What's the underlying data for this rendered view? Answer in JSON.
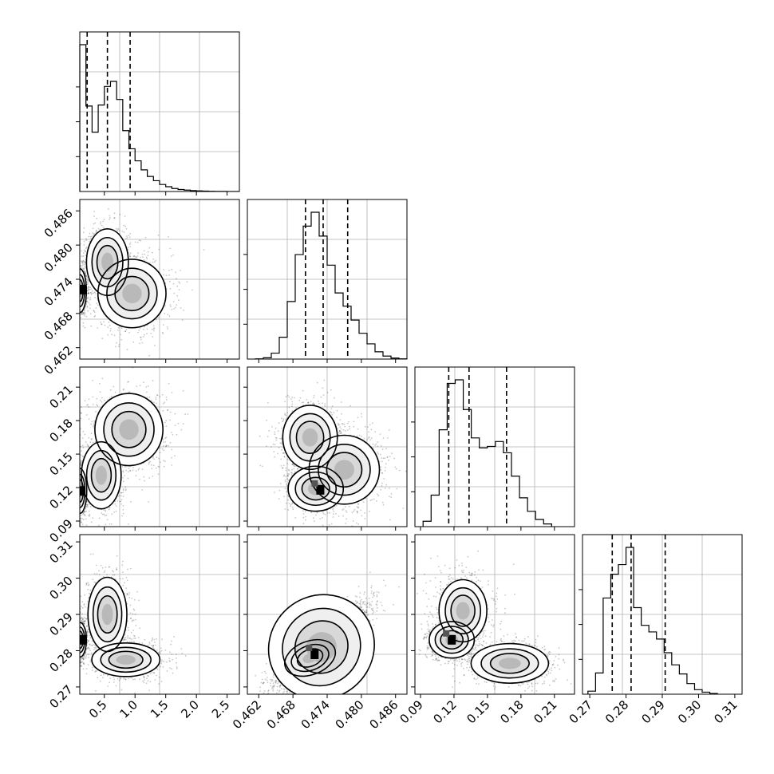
{
  "chart_data": {
    "type": "corner",
    "parameters": [
      {
        "range": [
          0.1,
          2.7
        ],
        "ticks": [
          0.5,
          1.0,
          1.5,
          2.0,
          2.5
        ],
        "tick_labels": [
          "0.5",
          "1.0",
          "1.5",
          "2.0",
          "2.5"
        ],
        "quantiles": [
          0.22,
          0.55,
          0.92
        ],
        "histogram": {
          "edges": [
            0.1,
            0.2,
            0.3,
            0.4,
            0.5,
            0.6,
            0.7,
            0.8,
            0.9,
            1.0,
            1.1,
            1.2,
            1.3,
            1.4,
            1.5,
            1.6,
            1.7,
            1.8,
            1.9,
            2.0,
            2.1,
            2.2,
            2.3,
            2.4,
            2.5,
            2.6,
            2.7
          ],
          "counts": [
            2920,
            1700,
            1180,
            1720,
            2090,
            2190,
            1830,
            1210,
            850,
            610,
            430,
            300,
            215,
            140,
            95,
            60,
            40,
            28,
            18,
            12,
            8,
            5,
            3,
            2,
            1,
            1
          ]
        }
      },
      {
        "range": [
          0.46,
          0.488
        ],
        "ticks": [
          0.462,
          0.468,
          0.474,
          0.48,
          0.486
        ],
        "tick_labels": [
          "0.462",
          "0.468",
          "0.474",
          "0.480",
          "0.486"
        ],
        "quantiles": [
          0.4702,
          0.4733,
          0.4776
        ],
        "histogram": {
          "edges": [
            0.4614,
            0.4628,
            0.4642,
            0.4656,
            0.467,
            0.4684,
            0.4698,
            0.4712,
            0.4726,
            0.474,
            0.4754,
            0.4768,
            0.4782,
            0.4796,
            0.481,
            0.4824,
            0.4838,
            0.4852,
            0.4866,
            0.488
          ],
          "counts": [
            3,
            20,
            90,
            330,
            870,
            1580,
            2010,
            2220,
            1860,
            1420,
            1000,
            800,
            590,
            390,
            230,
            110,
            45,
            15,
            4
          ]
        }
      },
      {
        "range": [
          0.085,
          0.228
        ],
        "ticks": [
          0.09,
          0.12,
          0.15,
          0.18,
          0.21
        ],
        "tick_labels": [
          "0.09",
          "0.12",
          "0.15",
          "0.18",
          "0.21"
        ],
        "quantiles": [
          0.1153,
          0.1335,
          0.1671
        ],
        "histogram": {
          "edges": [
            0.0923,
            0.0995,
            0.1067,
            0.1139,
            0.1211,
            0.1283,
            0.1355,
            0.1427,
            0.1499,
            0.1571,
            0.1643,
            0.1715,
            0.1787,
            0.1859,
            0.1931,
            0.2003,
            0.2075
          ],
          "counts": [
            120,
            700,
            2150,
            3180,
            3260,
            2600,
            1970,
            1750,
            1780,
            1890,
            1640,
            1120,
            640,
            340,
            160,
            60
          ]
        }
      },
      {
        "range": [
          0.268,
          0.312
        ],
        "ticks": [
          0.27,
          0.28,
          0.29,
          0.3,
          0.31
        ],
        "tick_labels": [
          "0.27",
          "0.28",
          "0.29",
          "0.30",
          "0.31"
        ],
        "quantiles": [
          0.2762,
          0.2814,
          0.2908
        ],
        "histogram": {
          "edges": [
            0.2695,
            0.2716,
            0.2737,
            0.2758,
            0.2779,
            0.28,
            0.2821,
            0.2842,
            0.2863,
            0.2884,
            0.2905,
            0.2926,
            0.2947,
            0.2968,
            0.2989,
            0.301,
            0.3031,
            0.3052
          ],
          "counts": [
            60,
            420,
            1900,
            2370,
            2560,
            2900,
            1710,
            1360,
            1230,
            1090,
            820,
            580,
            400,
            210,
            90,
            40,
            15
          ]
        }
      }
    ],
    "contour_panels": [
      {
        "x": 0,
        "y": 1,
        "samples": [
          {
            "x": 0.1,
            "y": 0.472,
            "sx": 0.045,
            "sy": 0.0016,
            "w": 0.34,
            "n": 1000
          },
          {
            "x": 0.55,
            "y": 0.477,
            "sx": 0.14,
            "sy": 0.0024,
            "w": 0.36,
            "n": 1000
          },
          {
            "x": 0.95,
            "y": 0.4715,
            "sx": 0.24,
            "sy": 0.0026,
            "w": 0.3,
            "n": 900
          }
        ],
        "peak": {
          "x": 0.14,
          "y": 0.4722
        }
      },
      {
        "x": 0,
        "y": 2,
        "samples": [
          {
            "x": 0.1,
            "y": 0.117,
            "sx": 0.045,
            "sy": 0.008,
            "w": 0.4,
            "n": 1000
          },
          {
            "x": 0.45,
            "y": 0.131,
            "sx": 0.14,
            "sy": 0.013,
            "w": 0.3,
            "n": 900
          },
          {
            "x": 0.9,
            "y": 0.172,
            "sx": 0.24,
            "sy": 0.014,
            "w": 0.3,
            "n": 900
          }
        ],
        "peak": {
          "x": 0.12,
          "y": 0.117
        }
      },
      {
        "x": 1,
        "y": 2,
        "samples": [
          {
            "x": 0.472,
            "y": 0.119,
            "sx": 0.0018,
            "sy": 0.0075,
            "w": 0.48,
            "n": 1100
          },
          {
            "x": 0.471,
            "y": 0.165,
            "sx": 0.002,
            "sy": 0.012,
            "w": 0.34,
            "n": 900
          },
          {
            "x": 0.477,
            "y": 0.136,
            "sx": 0.003,
            "sy": 0.015,
            "w": 0.18,
            "n": 700
          }
        ],
        "peak": {
          "x": 0.4728,
          "y": 0.118
        }
      },
      {
        "x": 0,
        "y": 3,
        "samples": [
          {
            "x": 0.1,
            "y": 0.283,
            "sx": 0.045,
            "sy": 0.002,
            "w": 0.34,
            "n": 900
          },
          {
            "x": 0.55,
            "y": 0.29,
            "sx": 0.13,
            "sy": 0.0042,
            "w": 0.36,
            "n": 1000
          },
          {
            "x": 0.85,
            "y": 0.2775,
            "sx": 0.24,
            "sy": 0.002,
            "w": 0.3,
            "n": 900
          }
        ],
        "peak": {
          "x": 0.14,
          "y": 0.283
        }
      },
      {
        "x": 1,
        "y": 3,
        "samples": [
          {
            "x": 0.473,
            "y": 0.281,
            "sx": 0.003,
            "sy": 0.0045,
            "rho": 0.86,
            "w": 0.7,
            "n": 2400
          },
          {
            "x": 0.471,
            "y": 0.278,
            "sx": 0.002,
            "sy": 0.002,
            "rho": 0.6,
            "w": 0.3,
            "n": 600
          }
        ],
        "peak": {
          "x": 0.4718,
          "y": 0.279
        }
      },
      {
        "x": 2,
        "y": 3,
        "samples": [
          {
            "x": 0.118,
            "y": 0.283,
            "sx": 0.008,
            "sy": 0.002,
            "w": 0.4,
            "n": 1000
          },
          {
            "x": 0.128,
            "y": 0.291,
            "sx": 0.01,
            "sy": 0.004,
            "w": 0.22,
            "n": 700
          },
          {
            "x": 0.17,
            "y": 0.2765,
            "sx": 0.014,
            "sy": 0.0022,
            "w": 0.38,
            "n": 1000
          }
        ],
        "peak": {
          "x": 0.118,
          "y": 0.283
        }
      }
    ]
  }
}
